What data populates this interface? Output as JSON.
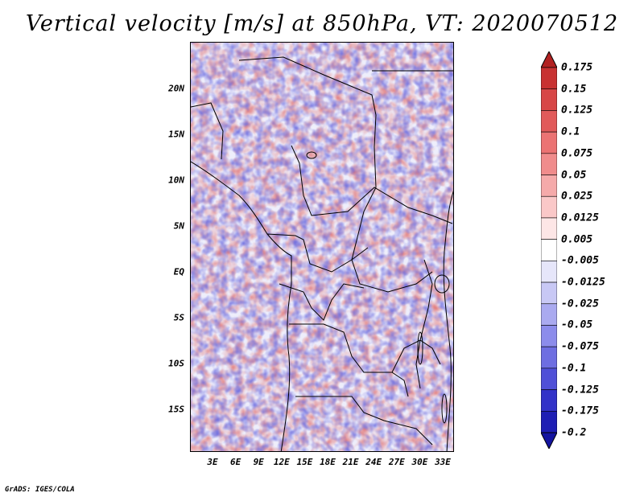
{
  "title": "Vertical velocity [m/s] at 850hPa, VT: 2020070512",
  "credit": "GrADS: IGES/COLA",
  "map": {
    "lat_labels": [
      "20N",
      "15N",
      "10N",
      "5N",
      "EQ",
      "5S",
      "10S",
      "15S"
    ],
    "lon_labels": [
      "3E",
      "6E",
      "9E",
      "12E",
      "15E",
      "18E",
      "21E",
      "24E",
      "27E",
      "30E",
      "33E"
    ],
    "field": "vertical velocity at 850hPa",
    "background_color": "#f2f0fa"
  },
  "colorbar": {
    "labels": [
      "0.175",
      "0.15",
      "0.125",
      "0.1",
      "0.075",
      "0.05",
      "0.025",
      "0.0125",
      "0.005",
      "-0.005",
      "-0.0125",
      "-0.025",
      "-0.05",
      "-0.075",
      "-0.1",
      "-0.125",
      "-0.175",
      "-0.2"
    ],
    "colors": [
      "#b22222",
      "#c83232",
      "#d74646",
      "#e15a5a",
      "#eb7373",
      "#f08c8c",
      "#f5aaaa",
      "#fac8c8",
      "#fde6e6",
      "#ffffff",
      "#e6e6fa",
      "#c8c8f5",
      "#aaaaf0",
      "#8c8ceb",
      "#6e6ee1",
      "#5050d7",
      "#3232c8",
      "#1e1eb4",
      "#1414a0"
    ]
  }
}
